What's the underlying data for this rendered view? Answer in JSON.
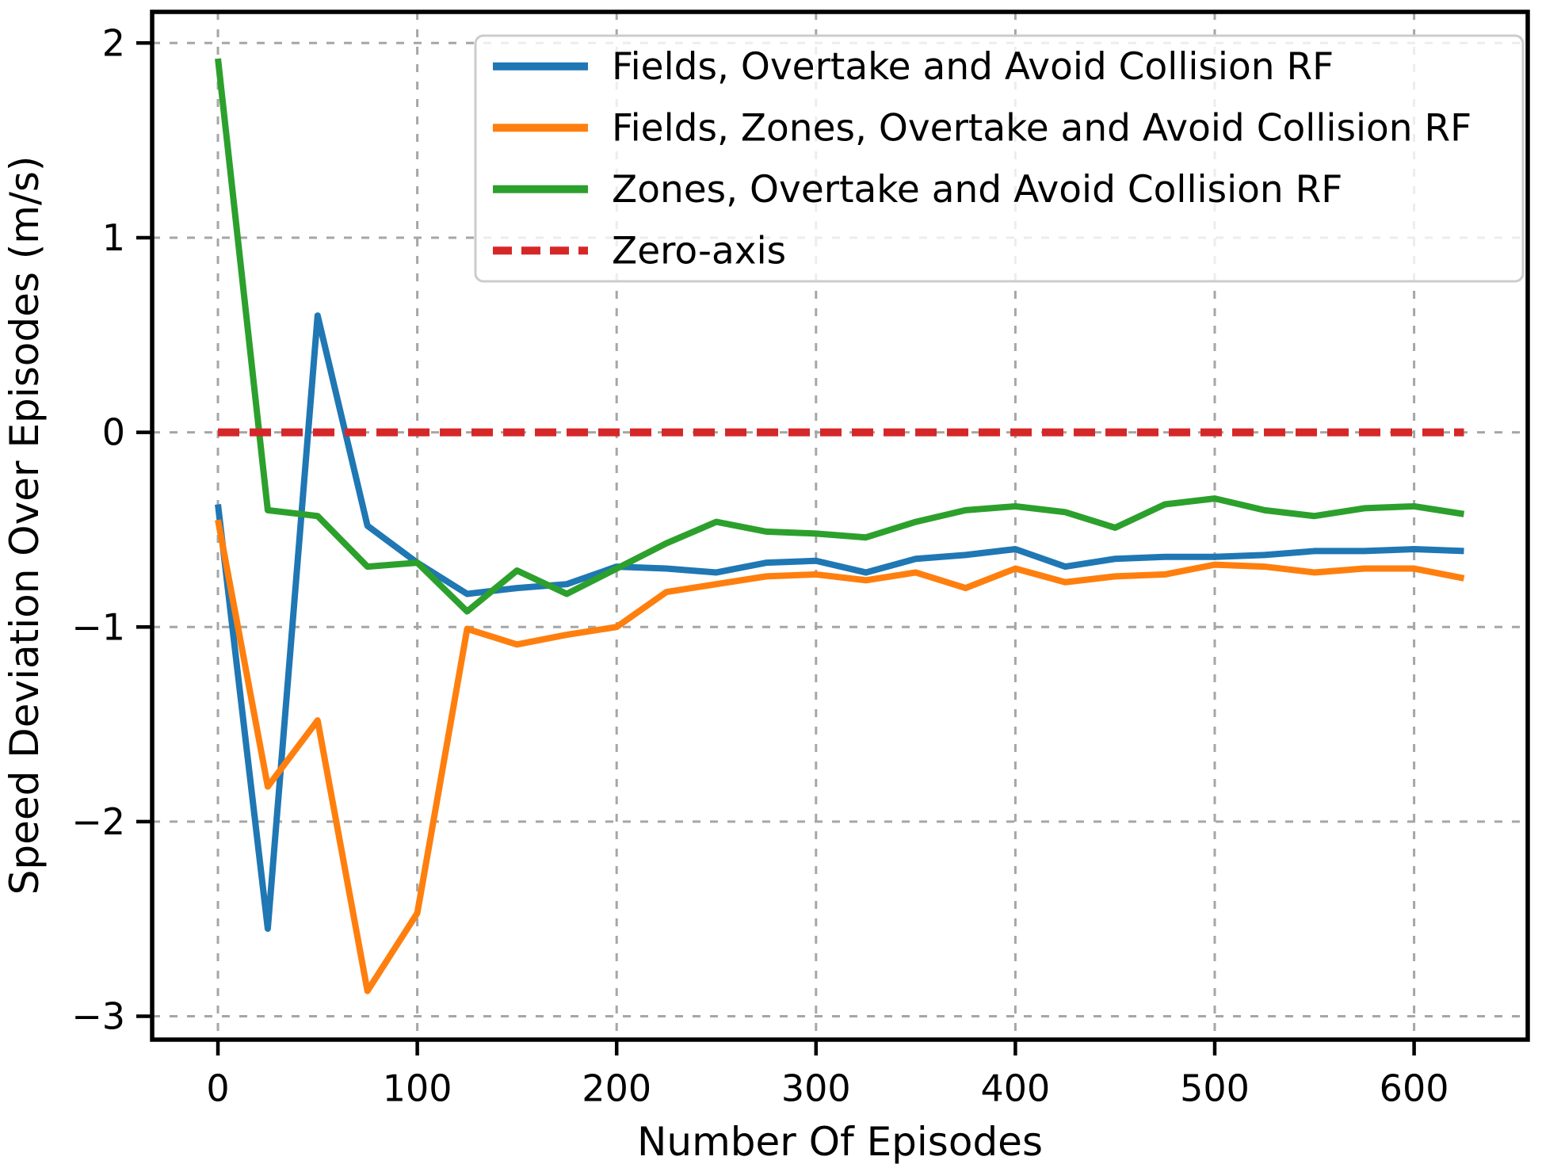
{
  "figure": {
    "xlabel": "Number Of Episodes",
    "ylabel": "Speed Deviation Over Episodes (m/s)"
  },
  "chart_data": {
    "type": "line",
    "title": "",
    "xlabel": "Number Of Episodes",
    "ylabel": "Speed Deviation Over Episodes (m/s)",
    "xlim": [
      -33,
      657
    ],
    "ylim": [
      -3.12,
      2.16
    ],
    "grid": true,
    "grid_color": "#a6a6a6",
    "spine_color": "#000000",
    "legend_position": "upper right",
    "x_ticks": [
      0,
      100,
      200,
      300,
      400,
      500,
      600
    ],
    "x_tick_labels": [
      "0",
      "100",
      "200",
      "300",
      "400",
      "500",
      "600"
    ],
    "y_ticks": [
      2,
      1,
      0,
      -1,
      -2,
      -3
    ],
    "y_tick_labels": [
      "2",
      "1",
      "0",
      "−1",
      "−2",
      "−3"
    ],
    "x": [
      0,
      25,
      50,
      75,
      100,
      125,
      150,
      175,
      200,
      225,
      250,
      275,
      300,
      325,
      350,
      375,
      400,
      425,
      450,
      475,
      500,
      525,
      550,
      575,
      600,
      625
    ],
    "series": [
      {
        "name": "Fields, Overtake and Avoid Collision RF",
        "color": "#1f77b4",
        "style": "solid",
        "values": [
          -0.37,
          -2.55,
          0.6,
          -0.48,
          -0.67,
          -0.83,
          -0.8,
          -0.78,
          -0.69,
          -0.7,
          -0.72,
          -0.67,
          -0.66,
          -0.72,
          -0.65,
          -0.63,
          -0.6,
          -0.69,
          -0.65,
          -0.64,
          -0.64,
          -0.63,
          -0.61,
          -0.61,
          -0.6,
          -0.61
        ]
      },
      {
        "name": "Fields, Zones, Overtake and Avoid Collision RF",
        "color": "#ff7f0e",
        "style": "solid",
        "values": [
          -0.45,
          -1.82,
          -1.48,
          -2.87,
          -2.47,
          -1.01,
          -1.09,
          -1.04,
          -1.0,
          -0.82,
          -0.78,
          -0.74,
          -0.73,
          -0.76,
          -0.72,
          -0.8,
          -0.7,
          -0.77,
          -0.74,
          -0.73,
          -0.68,
          -0.69,
          -0.72,
          -0.7,
          -0.7,
          -0.75
        ]
      },
      {
        "name": "Zones, Overtake and Avoid Collision RF",
        "color": "#2ca02c",
        "style": "solid",
        "values": [
          1.92,
          -0.4,
          -0.43,
          -0.69,
          -0.67,
          -0.92,
          -0.71,
          -0.83,
          -0.7,
          -0.57,
          -0.46,
          -0.51,
          -0.52,
          -0.54,
          -0.46,
          -0.4,
          -0.38,
          -0.41,
          -0.49,
          -0.37,
          -0.34,
          -0.4,
          -0.43,
          -0.39,
          -0.38,
          -0.42
        ]
      },
      {
        "name": "Zero-axis",
        "color": "#d62728",
        "style": "dashed",
        "x": [
          0,
          625
        ],
        "values": [
          0,
          0
        ]
      }
    ]
  }
}
